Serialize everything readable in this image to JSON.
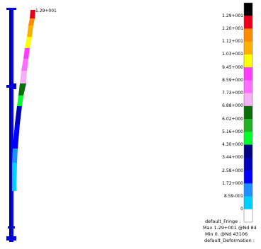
{
  "legend": {
    "labels": [
      "1.29+001",
      "1.20+001",
      "1.12+001",
      "1.03+001",
      "9.45+000",
      "8.59+000",
      "7.73+000",
      "6.88+000",
      "6.02+000",
      "5.16+000",
      "4.30+000",
      "3.44+000",
      "2.58+000",
      "1.72+000",
      "8.59-001",
      "0"
    ],
    "colors": [
      "#000000",
      "#e8001a",
      "#ff8c00",
      "#ffb000",
      "#ffff00",
      "#ff3cff",
      "#ff6fff",
      "#f5b0f5",
      "#0a6e0a",
      "#21b121",
      "#00ff2a",
      "#000080",
      "#0000b8",
      "#0000ff",
      "#1e90ff",
      "#00d0ff",
      "#ffffff"
    ]
  },
  "peak_label": "1.29+001",
  "info": {
    "line1": "default_Fringe :",
    "line2": "Max 1.29+001 @Nd 84",
    "line3": "Min  0. @Nd 43106",
    "line4": "default_Deformation :"
  }
}
